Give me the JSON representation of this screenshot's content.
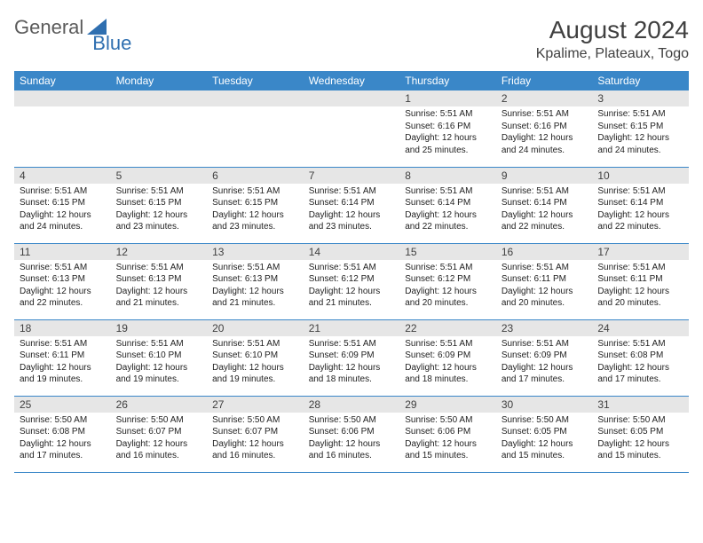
{
  "logo": {
    "text1": "General",
    "text2": "Blue"
  },
  "header": {
    "month_title": "August 2024",
    "location": "Kpalime, Plateaux, Togo"
  },
  "colors": {
    "header_bg": "#3a87c8",
    "header_fg": "#ffffff",
    "daynum_bg": "#e6e6e6",
    "row_border": "#3a87c8",
    "logo_gray": "#5b5b5b",
    "logo_blue": "#2f6fb0",
    "title_color": "#404040"
  },
  "day_headers": [
    "Sunday",
    "Monday",
    "Tuesday",
    "Wednesday",
    "Thursday",
    "Friday",
    "Saturday"
  ],
  "weeks": [
    [
      {
        "n": "",
        "sunrise": "",
        "sunset": "",
        "day": ""
      },
      {
        "n": "",
        "sunrise": "",
        "sunset": "",
        "day": ""
      },
      {
        "n": "",
        "sunrise": "",
        "sunset": "",
        "day": ""
      },
      {
        "n": "",
        "sunrise": "",
        "sunset": "",
        "day": ""
      },
      {
        "n": "1",
        "sunrise": "Sunrise: 5:51 AM",
        "sunset": "Sunset: 6:16 PM",
        "day": "Daylight: 12 hours and 25 minutes."
      },
      {
        "n": "2",
        "sunrise": "Sunrise: 5:51 AM",
        "sunset": "Sunset: 6:16 PM",
        "day": "Daylight: 12 hours and 24 minutes."
      },
      {
        "n": "3",
        "sunrise": "Sunrise: 5:51 AM",
        "sunset": "Sunset: 6:15 PM",
        "day": "Daylight: 12 hours and 24 minutes."
      }
    ],
    [
      {
        "n": "4",
        "sunrise": "Sunrise: 5:51 AM",
        "sunset": "Sunset: 6:15 PM",
        "day": "Daylight: 12 hours and 24 minutes."
      },
      {
        "n": "5",
        "sunrise": "Sunrise: 5:51 AM",
        "sunset": "Sunset: 6:15 PM",
        "day": "Daylight: 12 hours and 23 minutes."
      },
      {
        "n": "6",
        "sunrise": "Sunrise: 5:51 AM",
        "sunset": "Sunset: 6:15 PM",
        "day": "Daylight: 12 hours and 23 minutes."
      },
      {
        "n": "7",
        "sunrise": "Sunrise: 5:51 AM",
        "sunset": "Sunset: 6:14 PM",
        "day": "Daylight: 12 hours and 23 minutes."
      },
      {
        "n": "8",
        "sunrise": "Sunrise: 5:51 AM",
        "sunset": "Sunset: 6:14 PM",
        "day": "Daylight: 12 hours and 22 minutes."
      },
      {
        "n": "9",
        "sunrise": "Sunrise: 5:51 AM",
        "sunset": "Sunset: 6:14 PM",
        "day": "Daylight: 12 hours and 22 minutes."
      },
      {
        "n": "10",
        "sunrise": "Sunrise: 5:51 AM",
        "sunset": "Sunset: 6:14 PM",
        "day": "Daylight: 12 hours and 22 minutes."
      }
    ],
    [
      {
        "n": "11",
        "sunrise": "Sunrise: 5:51 AM",
        "sunset": "Sunset: 6:13 PM",
        "day": "Daylight: 12 hours and 22 minutes."
      },
      {
        "n": "12",
        "sunrise": "Sunrise: 5:51 AM",
        "sunset": "Sunset: 6:13 PM",
        "day": "Daylight: 12 hours and 21 minutes."
      },
      {
        "n": "13",
        "sunrise": "Sunrise: 5:51 AM",
        "sunset": "Sunset: 6:13 PM",
        "day": "Daylight: 12 hours and 21 minutes."
      },
      {
        "n": "14",
        "sunrise": "Sunrise: 5:51 AM",
        "sunset": "Sunset: 6:12 PM",
        "day": "Daylight: 12 hours and 21 minutes."
      },
      {
        "n": "15",
        "sunrise": "Sunrise: 5:51 AM",
        "sunset": "Sunset: 6:12 PM",
        "day": "Daylight: 12 hours and 20 minutes."
      },
      {
        "n": "16",
        "sunrise": "Sunrise: 5:51 AM",
        "sunset": "Sunset: 6:11 PM",
        "day": "Daylight: 12 hours and 20 minutes."
      },
      {
        "n": "17",
        "sunrise": "Sunrise: 5:51 AM",
        "sunset": "Sunset: 6:11 PM",
        "day": "Daylight: 12 hours and 20 minutes."
      }
    ],
    [
      {
        "n": "18",
        "sunrise": "Sunrise: 5:51 AM",
        "sunset": "Sunset: 6:11 PM",
        "day": "Daylight: 12 hours and 19 minutes."
      },
      {
        "n": "19",
        "sunrise": "Sunrise: 5:51 AM",
        "sunset": "Sunset: 6:10 PM",
        "day": "Daylight: 12 hours and 19 minutes."
      },
      {
        "n": "20",
        "sunrise": "Sunrise: 5:51 AM",
        "sunset": "Sunset: 6:10 PM",
        "day": "Daylight: 12 hours and 19 minutes."
      },
      {
        "n": "21",
        "sunrise": "Sunrise: 5:51 AM",
        "sunset": "Sunset: 6:09 PM",
        "day": "Daylight: 12 hours and 18 minutes."
      },
      {
        "n": "22",
        "sunrise": "Sunrise: 5:51 AM",
        "sunset": "Sunset: 6:09 PM",
        "day": "Daylight: 12 hours and 18 minutes."
      },
      {
        "n": "23",
        "sunrise": "Sunrise: 5:51 AM",
        "sunset": "Sunset: 6:09 PM",
        "day": "Daylight: 12 hours and 17 minutes."
      },
      {
        "n": "24",
        "sunrise": "Sunrise: 5:51 AM",
        "sunset": "Sunset: 6:08 PM",
        "day": "Daylight: 12 hours and 17 minutes."
      }
    ],
    [
      {
        "n": "25",
        "sunrise": "Sunrise: 5:50 AM",
        "sunset": "Sunset: 6:08 PM",
        "day": "Daylight: 12 hours and 17 minutes."
      },
      {
        "n": "26",
        "sunrise": "Sunrise: 5:50 AM",
        "sunset": "Sunset: 6:07 PM",
        "day": "Daylight: 12 hours and 16 minutes."
      },
      {
        "n": "27",
        "sunrise": "Sunrise: 5:50 AM",
        "sunset": "Sunset: 6:07 PM",
        "day": "Daylight: 12 hours and 16 minutes."
      },
      {
        "n": "28",
        "sunrise": "Sunrise: 5:50 AM",
        "sunset": "Sunset: 6:06 PM",
        "day": "Daylight: 12 hours and 16 minutes."
      },
      {
        "n": "29",
        "sunrise": "Sunrise: 5:50 AM",
        "sunset": "Sunset: 6:06 PM",
        "day": "Daylight: 12 hours and 15 minutes."
      },
      {
        "n": "30",
        "sunrise": "Sunrise: 5:50 AM",
        "sunset": "Sunset: 6:05 PM",
        "day": "Daylight: 12 hours and 15 minutes."
      },
      {
        "n": "31",
        "sunrise": "Sunrise: 5:50 AM",
        "sunset": "Sunset: 6:05 PM",
        "day": "Daylight: 12 hours and 15 minutes."
      }
    ]
  ]
}
